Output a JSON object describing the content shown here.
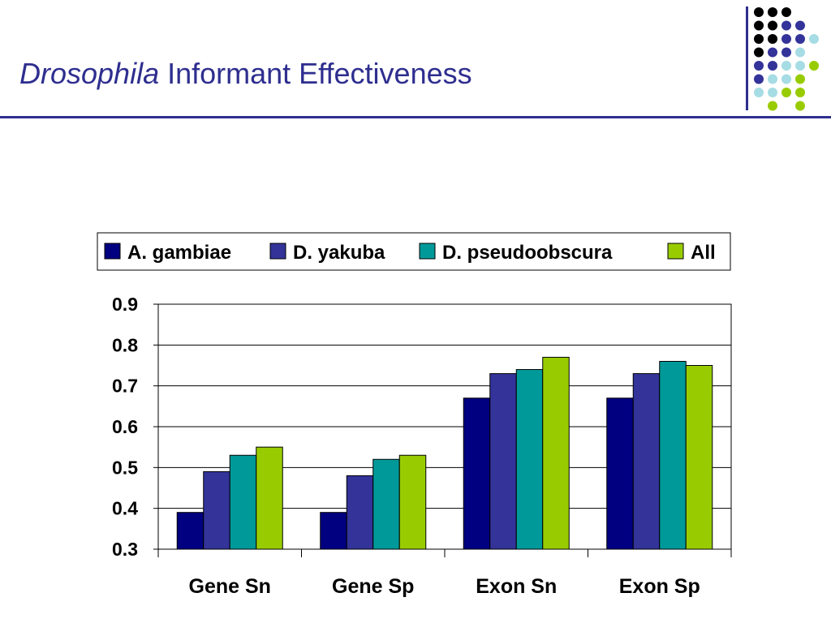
{
  "slide": {
    "title_italic": "Drosophila",
    "title_rest": " Informant Effectiveness"
  },
  "decor": {
    "dot_rows": [
      [
        "black",
        "black",
        "black",
        null,
        null
      ],
      [
        "black",
        "black",
        "purple",
        "purple",
        null
      ],
      [
        "black",
        "black",
        "purple",
        "purple",
        "lightblue"
      ],
      [
        "black",
        "purple",
        "purple",
        "lightblue",
        null
      ],
      [
        "purple",
        "purple",
        "lightblue",
        "lightblue",
        "green"
      ],
      [
        "purple",
        "lightblue",
        "lightblue",
        "green",
        null
      ],
      [
        "lightblue",
        "lightblue",
        "green",
        "green",
        null
      ],
      [
        null,
        "green",
        null,
        "green",
        null
      ]
    ],
    "colors": {
      "black": "#000000",
      "purple": "#333399",
      "lightblue": "#a6dce4",
      "green": "#99cc00",
      "rule": "#2e2e8f"
    }
  },
  "chart_data": {
    "type": "bar",
    "categories": [
      "Gene Sn",
      "Gene Sp",
      "Exon Sn",
      "Exon Sp"
    ],
    "series": [
      {
        "name": "A. gambiae",
        "color": "#000080",
        "values": [
          0.39,
          0.39,
          0.67,
          0.67
        ]
      },
      {
        "name": "D. yakuba",
        "color": "#333399",
        "values": [
          0.49,
          0.48,
          0.73,
          0.73
        ]
      },
      {
        "name": "D. pseudoobscura",
        "color": "#009999",
        "values": [
          0.53,
          0.52,
          0.74,
          0.76
        ]
      },
      {
        "name": "All",
        "color": "#99cc00",
        "values": [
          0.55,
          0.53,
          0.77,
          0.75
        ]
      }
    ],
    "ylim": [
      0.3,
      0.9
    ],
    "yticks": [
      "0.3",
      "0.4",
      "0.5",
      "0.6",
      "0.7",
      "0.8",
      "0.9"
    ],
    "grid": true,
    "legend_position": "top"
  }
}
